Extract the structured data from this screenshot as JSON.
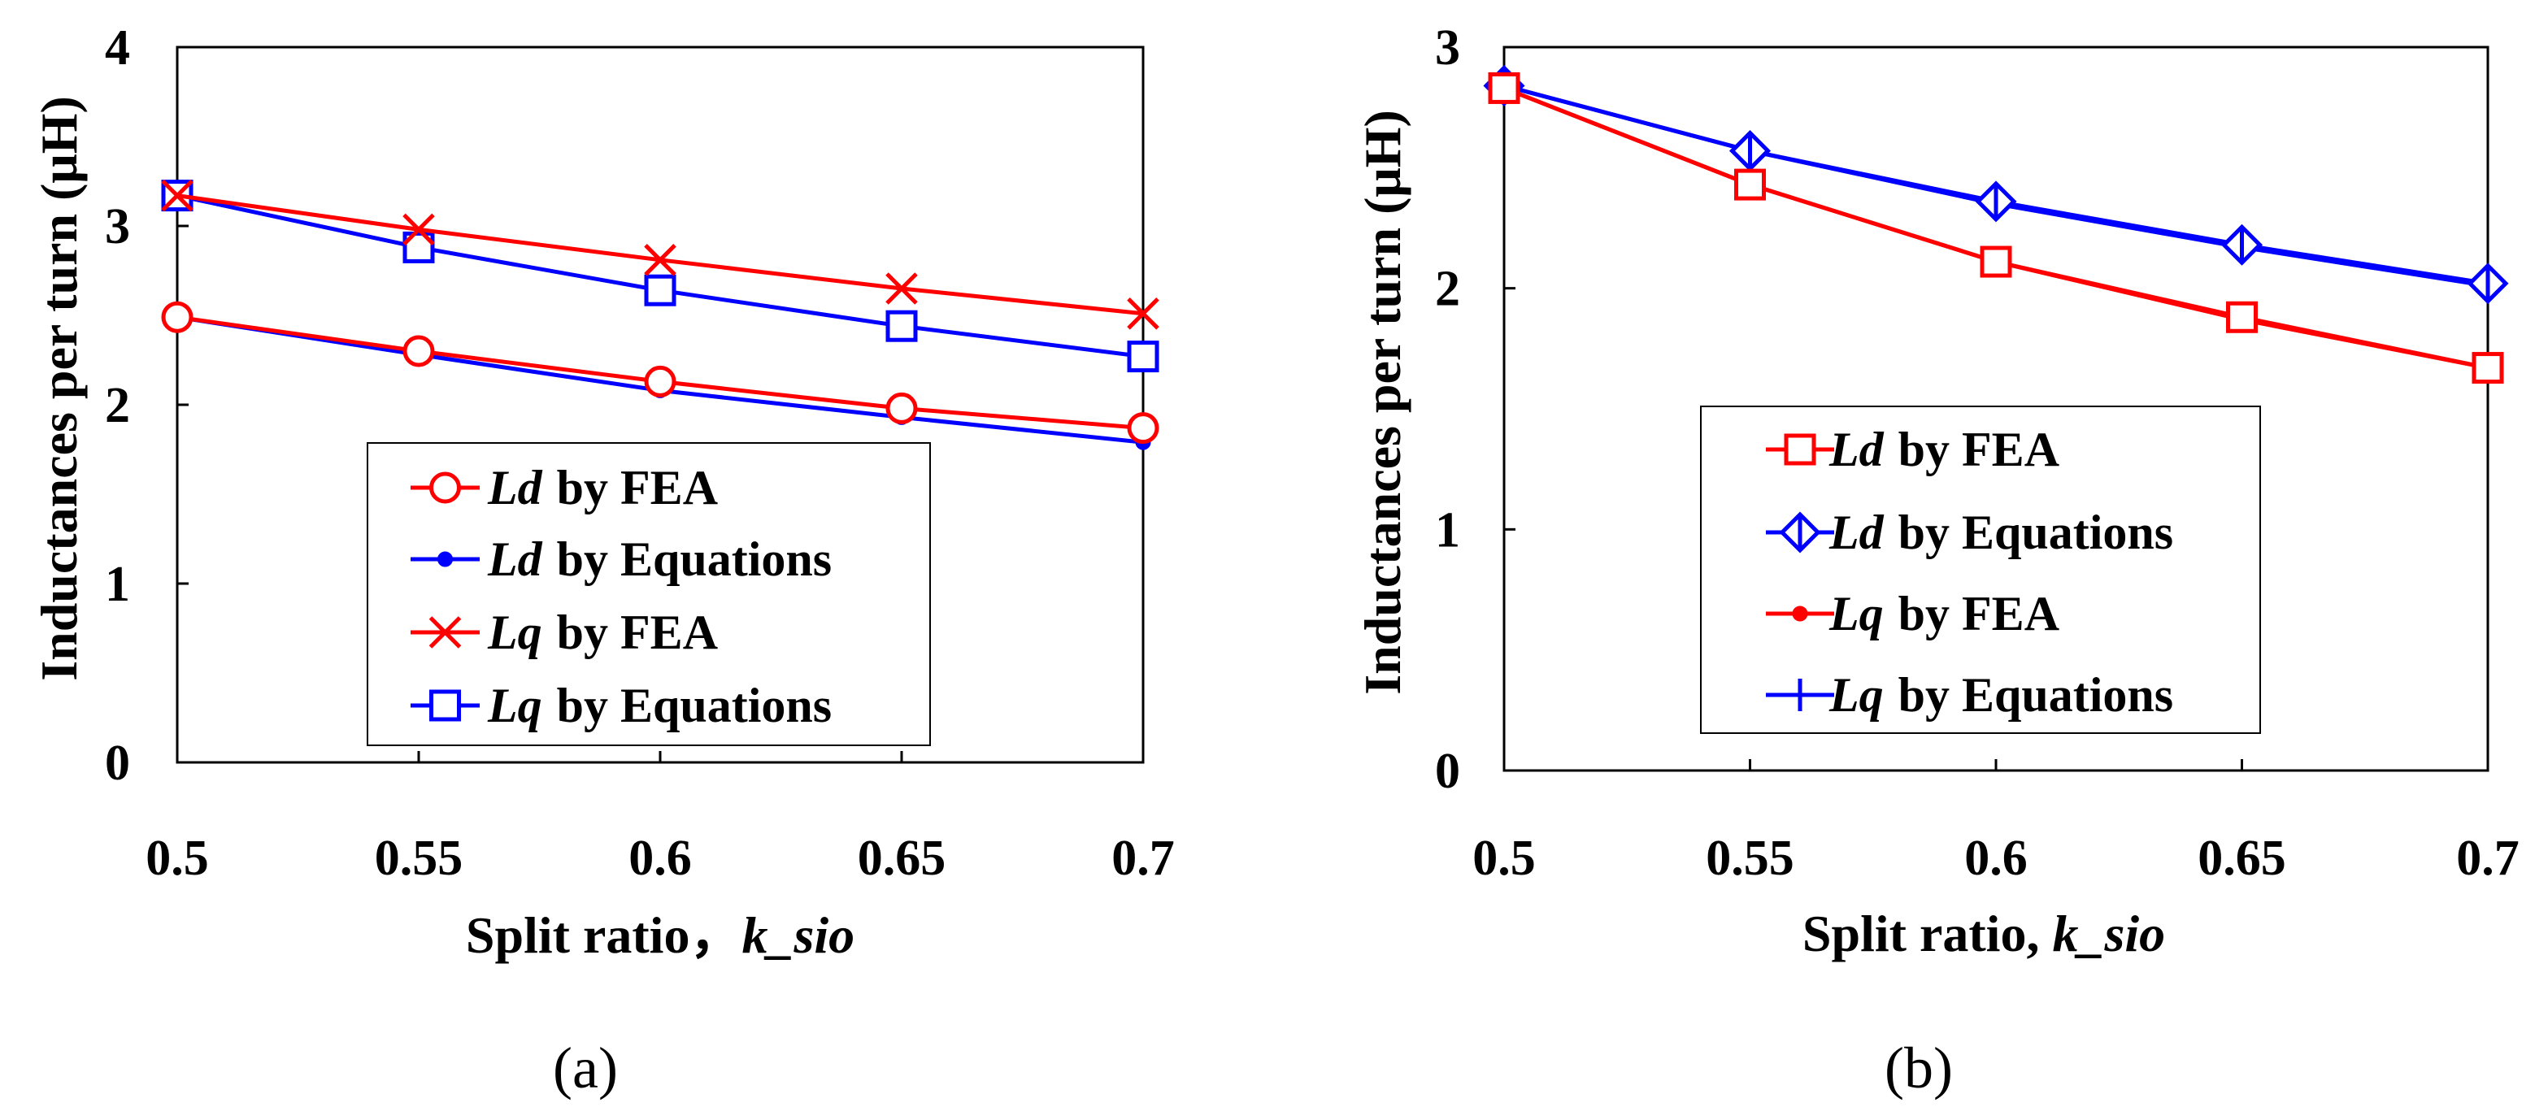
{
  "chart_data": [
    {
      "type": "line",
      "panel_label": "(a)",
      "x": [
        0.5,
        0.55,
        0.6,
        0.65,
        0.7
      ],
      "x_tick_labels": [
        "0.5",
        "0.55",
        "0.6",
        "0.65",
        "0.7"
      ],
      "y_tick_labels": [
        "0",
        "1",
        "2",
        "3",
        "4"
      ],
      "xlim": [
        0.5,
        0.7
      ],
      "ylim": [
        0,
        4
      ],
      "xlabel": "Split ratio，",
      "xlabel_italic": "k_sio",
      "ylabel": "Inductances per turn (μH)",
      "legend_position": "lower-center",
      "series": [
        {
          "name_italic": "Ld",
          "name_rest": "by FEA",
          "marker": "circle",
          "color": "#ff0000",
          "values": [
            2.49,
            2.3,
            2.13,
            1.98,
            1.87
          ]
        },
        {
          "name_italic": "Ld",
          "name_rest": "by Equations",
          "marker": "dot",
          "color": "#0000ff",
          "values": [
            2.49,
            2.28,
            2.08,
            1.93,
            1.79
          ]
        },
        {
          "name_italic": "Lq",
          "name_rest": "by FEA",
          "marker": "x",
          "color": "#ff0000",
          "values": [
            3.17,
            2.98,
            2.81,
            2.65,
            2.51
          ]
        },
        {
          "name_italic": "Lq",
          "name_rest": "by Equations",
          "marker": "square",
          "color": "#0000ff",
          "values": [
            3.17,
            2.88,
            2.64,
            2.44,
            2.27
          ]
        }
      ]
    },
    {
      "type": "line",
      "panel_label": "(b)",
      "x": [
        0.5,
        0.55,
        0.6,
        0.65,
        0.7
      ],
      "x_tick_labels": [
        "0.5",
        "0.55",
        "0.6",
        "0.65",
        "0.7"
      ],
      "y_tick_labels": [
        "0",
        "1",
        "2",
        "3"
      ],
      "xlim": [
        0.5,
        0.7
      ],
      "ylim": [
        0,
        3
      ],
      "xlabel": "Split ratio, ",
      "xlabel_italic": "k_sio",
      "ylabel": "Inductances per turn (μH)",
      "legend_position": "lower-left",
      "series": [
        {
          "name_italic": "Ld",
          "name_rest": "by FEA",
          "marker": "square",
          "color": "#ff0000",
          "values": [
            2.83,
            2.43,
            2.11,
            1.88,
            1.67
          ]
        },
        {
          "name_italic": "Ld",
          "name_rest": "by Equations",
          "marker": "diamond",
          "color": "#0000ff",
          "values": [
            2.84,
            2.57,
            2.36,
            2.18,
            2.02
          ]
        },
        {
          "name_italic": "Lq",
          "name_rest": "by FEA",
          "marker": "dot",
          "color": "#ff0000",
          "values": [
            2.83,
            2.43,
            2.11,
            1.87,
            1.67
          ]
        },
        {
          "name_italic": "Lq",
          "name_rest": "by Equations",
          "marker": "plus",
          "color": "#0000ff",
          "values": [
            2.84,
            2.57,
            2.35,
            2.17,
            2.01
          ]
        }
      ]
    }
  ]
}
